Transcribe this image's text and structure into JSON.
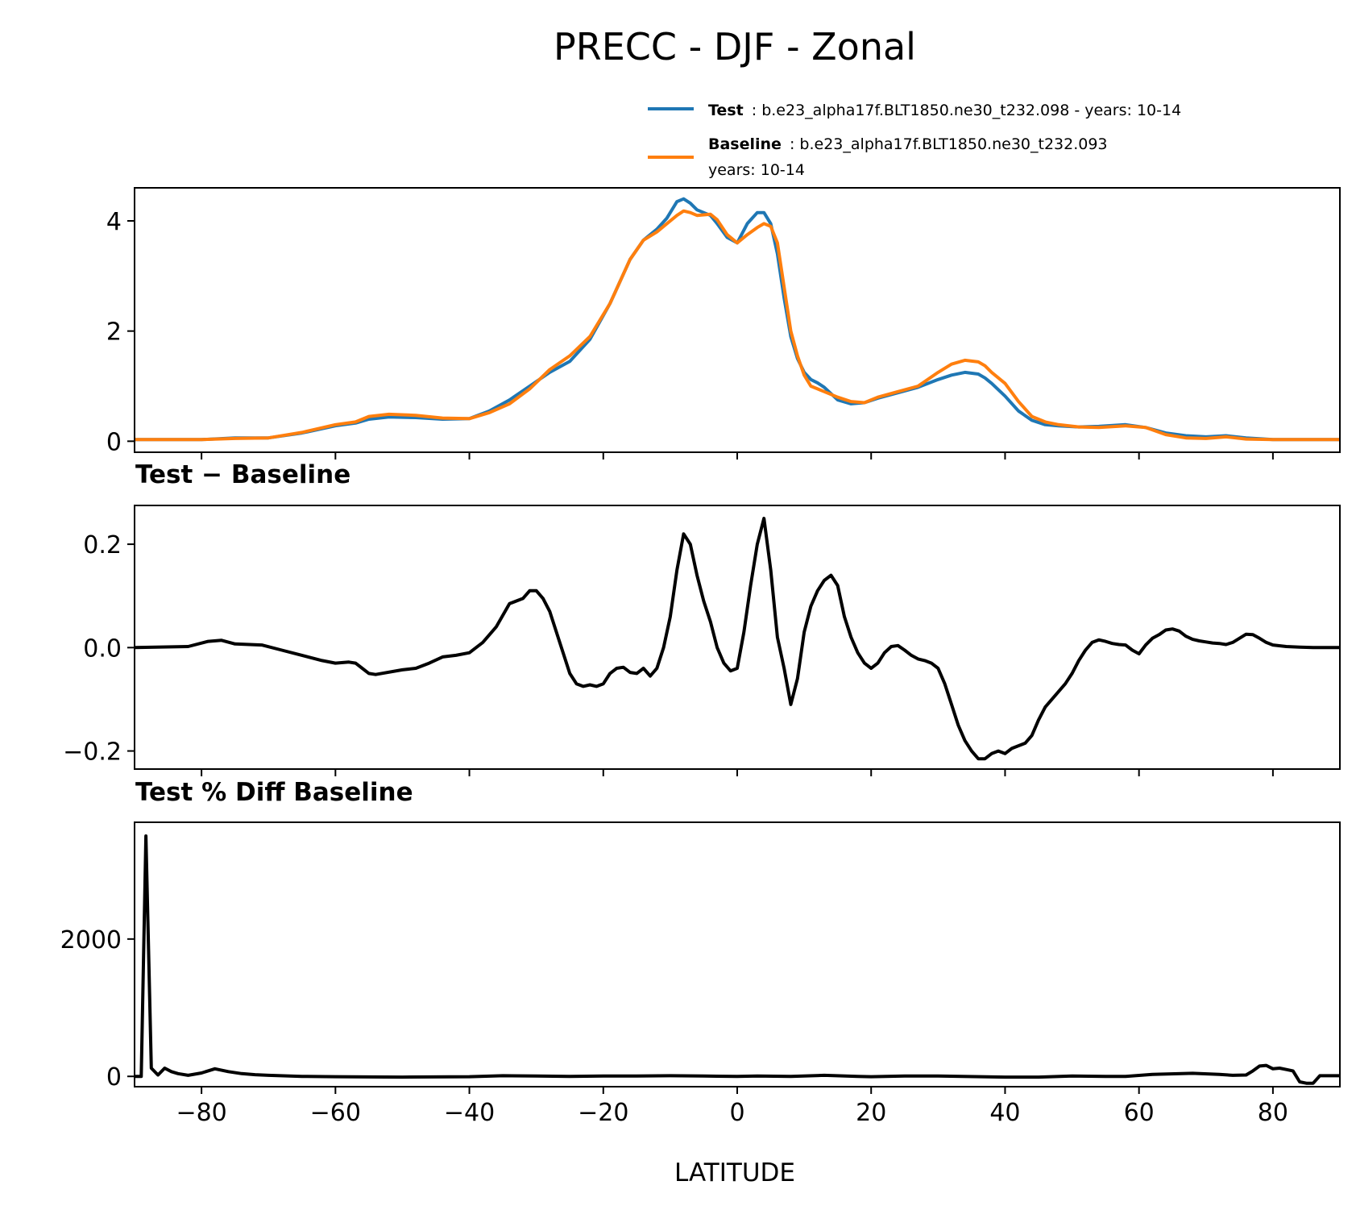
{
  "figure": {
    "title": "PRECC - DJF - Zonal",
    "xlabel": "LATITUDE"
  },
  "legend": {
    "test_name": "Test",
    "test_text": ": b.e23_alpha17f.BLT1850.ne30_t232.098 - years: 10-14",
    "baseline_name": "Baseline",
    "baseline_text": ": b.e23_alpha17f.BLT1850.ne30_t232.093",
    "baseline_years": "years: 10-14"
  },
  "colors": {
    "test": "#1f77b4",
    "baseline": "#ff7f0e",
    "diff": "#000000"
  },
  "chart_data": [
    {
      "type": "line",
      "title": "",
      "xlabel": "",
      "ylabel": "",
      "xlim": [
        -90,
        90
      ],
      "ylim": [
        -0.2,
        4.6
      ],
      "yticks": [
        0,
        2,
        4
      ],
      "ytick_labels": [
        "0",
        "2",
        "4"
      ],
      "xticks": [
        -80,
        -60,
        -40,
        -20,
        0,
        20,
        40,
        60,
        80
      ],
      "series": [
        {
          "name": "Test",
          "x": [
            -90,
            -80,
            -75,
            -70,
            -65,
            -60,
            -57,
            -55,
            -52,
            -48,
            -44,
            -40,
            -37,
            -34,
            -31,
            -28,
            -25,
            -22,
            -19,
            -16,
            -14,
            -12,
            -10.5,
            -9,
            -8,
            -7,
            -6,
            -4,
            -3,
            -1.5,
            0,
            1.5,
            3,
            4,
            5,
            6,
            7,
            8,
            9,
            10,
            11,
            12,
            13,
            15,
            17,
            19,
            21,
            24,
            27,
            30,
            32,
            34,
            36,
            37,
            38,
            40,
            42,
            44,
            46,
            48,
            51,
            54,
            58,
            61,
            64,
            67,
            70,
            73,
            76,
            80,
            85,
            90
          ],
          "values": [
            0.03,
            0.03,
            0.06,
            0.06,
            0.15,
            0.28,
            0.33,
            0.4,
            0.44,
            0.43,
            0.4,
            0.41,
            0.55,
            0.75,
            1.0,
            1.25,
            1.45,
            1.85,
            2.5,
            3.3,
            3.65,
            3.85,
            4.05,
            4.35,
            4.4,
            4.32,
            4.2,
            4.1,
            3.95,
            3.7,
            3.6,
            3.95,
            4.15,
            4.15,
            3.95,
            3.4,
            2.6,
            1.9,
            1.5,
            1.25,
            1.12,
            1.06,
            0.98,
            0.75,
            0.68,
            0.7,
            0.78,
            0.88,
            0.98,
            1.12,
            1.2,
            1.25,
            1.22,
            1.15,
            1.05,
            0.82,
            0.55,
            0.38,
            0.3,
            0.28,
            0.26,
            0.27,
            0.3,
            0.25,
            0.15,
            0.1,
            0.08,
            0.1,
            0.06,
            0.03,
            0.03,
            0.03
          ]
        },
        {
          "name": "Baseline",
          "x": [
            -90,
            -80,
            -75,
            -70,
            -65,
            -60,
            -57,
            -55,
            -52,
            -48,
            -44,
            -40,
            -37,
            -34,
            -31,
            -28,
            -25,
            -22,
            -19,
            -16,
            -14,
            -12,
            -10.5,
            -9,
            -8,
            -7,
            -6,
            -4,
            -3,
            -1.5,
            0,
            1.5,
            3,
            4,
            5,
            6,
            7,
            8,
            9,
            10,
            11,
            12,
            13,
            15,
            17,
            19,
            21,
            24,
            27,
            30,
            32,
            34,
            36,
            37,
            38,
            40,
            42,
            44,
            46,
            48,
            51,
            54,
            58,
            61,
            64,
            67,
            70,
            73,
            76,
            80,
            85,
            90
          ],
          "values": [
            0.03,
            0.03,
            0.05,
            0.06,
            0.16,
            0.3,
            0.35,
            0.45,
            0.49,
            0.47,
            0.42,
            0.41,
            0.52,
            0.68,
            0.95,
            1.3,
            1.55,
            1.9,
            2.5,
            3.3,
            3.65,
            3.8,
            3.95,
            4.1,
            4.18,
            4.15,
            4.1,
            4.12,
            4.02,
            3.75,
            3.6,
            3.75,
            3.88,
            3.95,
            3.9,
            3.6,
            2.8,
            2.0,
            1.55,
            1.2,
            1.0,
            0.95,
            0.9,
            0.8,
            0.72,
            0.7,
            0.8,
            0.9,
            1.0,
            1.25,
            1.4,
            1.47,
            1.44,
            1.37,
            1.25,
            1.05,
            0.72,
            0.45,
            0.35,
            0.3,
            0.26,
            0.25,
            0.28,
            0.25,
            0.12,
            0.06,
            0.05,
            0.08,
            0.04,
            0.03,
            0.03,
            0.03
          ]
        }
      ]
    },
    {
      "type": "line",
      "title": "Test − Baseline",
      "xlabel": "",
      "ylabel": "",
      "xlim": [
        -90,
        90
      ],
      "ylim": [
        -0.235,
        0.275
      ],
      "yticks": [
        -0.2,
        0.0,
        0.2
      ],
      "ytick_labels": [
        "−0.2",
        "0.0",
        "0.2"
      ],
      "xticks": [
        -80,
        -60,
        -40,
        -20,
        0,
        20,
        40,
        60,
        80
      ],
      "series": [
        {
          "name": "Test − Baseline",
          "x": [
            -90,
            -82,
            -79,
            -77,
            -75,
            -71,
            -68,
            -65,
            -62,
            -60,
            -58,
            -57,
            -56,
            -55,
            -54,
            -50,
            -48,
            -46,
            -44,
            -42,
            -40,
            -38,
            -36,
            -34,
            -32,
            -31,
            -30,
            -29,
            -28,
            -27,
            -26,
            -25,
            -24,
            -23,
            -22,
            -21,
            -20,
            -19,
            -18,
            -17,
            -16,
            -15,
            -14,
            -13,
            -12,
            -11,
            -10,
            -9,
            -8,
            -7,
            -6,
            -5,
            -4,
            -3,
            -2,
            -1,
            0,
            1,
            2,
            3,
            4,
            5,
            6,
            7,
            8,
            9,
            10,
            11,
            12,
            13,
            14,
            15,
            16,
            17,
            18,
            19,
            20,
            21,
            22,
            23,
            24,
            25,
            26,
            27,
            28,
            29,
            30,
            31,
            32,
            33,
            34,
            35,
            36,
            37,
            38,
            39,
            40,
            41,
            42,
            43,
            44,
            45,
            46,
            47,
            48,
            49,
            50,
            51,
            52,
            53,
            54,
            55,
            56,
            57,
            58,
            59,
            60,
            61,
            62,
            63,
            64,
            65,
            66,
            67,
            68,
            69,
            70,
            71,
            72,
            73,
            74,
            75,
            76,
            77,
            78,
            79,
            80,
            82,
            84,
            86,
            90
          ],
          "values": [
            0.0,
            0.002,
            0.012,
            0.014,
            0.007,
            0.005,
            -0.005,
            -0.015,
            -0.025,
            -0.03,
            -0.028,
            -0.03,
            -0.04,
            -0.05,
            -0.052,
            -0.043,
            -0.04,
            -0.03,
            -0.018,
            -0.015,
            -0.01,
            0.01,
            0.04,
            0.085,
            0.095,
            0.11,
            0.11,
            0.095,
            0.07,
            0.03,
            -0.01,
            -0.05,
            -0.07,
            -0.075,
            -0.072,
            -0.075,
            -0.07,
            -0.05,
            -0.04,
            -0.038,
            -0.048,
            -0.05,
            -0.04,
            -0.055,
            -0.04,
            0.0,
            0.06,
            0.15,
            0.22,
            0.2,
            0.14,
            0.09,
            0.05,
            0.0,
            -0.03,
            -0.045,
            -0.04,
            0.03,
            0.12,
            0.2,
            0.25,
            0.15,
            0.02,
            -0.04,
            -0.11,
            -0.06,
            0.03,
            0.08,
            0.11,
            0.13,
            0.14,
            0.12,
            0.06,
            0.02,
            -0.01,
            -0.03,
            -0.04,
            -0.03,
            -0.01,
            0.002,
            0.004,
            -0.005,
            -0.015,
            -0.022,
            -0.025,
            -0.03,
            -0.04,
            -0.07,
            -0.11,
            -0.15,
            -0.18,
            -0.2,
            -0.215,
            -0.215,
            -0.205,
            -0.2,
            -0.205,
            -0.195,
            -0.19,
            -0.185,
            -0.17,
            -0.14,
            -0.115,
            -0.1,
            -0.085,
            -0.07,
            -0.05,
            -0.025,
            -0.005,
            0.01,
            0.015,
            0.012,
            0.008,
            0.006,
            0.005,
            -0.005,
            -0.012,
            0.005,
            0.018,
            0.025,
            0.034,
            0.036,
            0.032,
            0.022,
            0.016,
            0.013,
            0.011,
            0.009,
            0.008,
            0.006,
            0.01,
            0.018,
            0.026,
            0.025,
            0.018,
            0.01,
            0.005,
            0.002,
            0.001,
            0.0,
            0.0
          ]
        }
      ]
    },
    {
      "type": "line",
      "title": "Test % Diff Baseline",
      "xlabel": "LATITUDE",
      "ylabel": "",
      "xlim": [
        -90,
        90
      ],
      "ylim": [
        -150,
        3700
      ],
      "yticks": [
        0,
        2000
      ],
      "ytick_labels": [
        "0",
        "2000"
      ],
      "xticks": [
        -80,
        -60,
        -40,
        -20,
        0,
        20,
        40,
        60,
        80
      ],
      "xtick_labels": [
        "−80",
        "−60",
        "−40",
        "−20",
        "0",
        "20",
        "40",
        "60",
        "80"
      ],
      "series": [
        {
          "name": "Test % Diff Baseline",
          "x": [
            -90,
            -89,
            -88.3,
            -87.5,
            -86.5,
            -85.5,
            -84.5,
            -83.5,
            -82,
            -80,
            -78,
            -76,
            -74,
            -72,
            -70,
            -65,
            -60,
            -50,
            -40,
            -35,
            -30,
            -25,
            -20,
            -15,
            -10,
            -5,
            0,
            3,
            8,
            13,
            18,
            20,
            25,
            30,
            40,
            45,
            50,
            55,
            58,
            62,
            68,
            72,
            74,
            76,
            77,
            78,
            79,
            80,
            81,
            82,
            83,
            84,
            85,
            86,
            87,
            90
          ],
          "values": [
            0,
            0,
            3500,
            120,
            20,
            120,
            70,
            40,
            15,
            50,
            110,
            70,
            40,
            25,
            15,
            0,
            -5,
            -10,
            -5,
            10,
            5,
            0,
            5,
            5,
            10,
            5,
            0,
            5,
            0,
            15,
            0,
            -5,
            5,
            5,
            -10,
            -10,
            5,
            0,
            0,
            30,
            45,
            30,
            15,
            20,
            80,
            150,
            160,
            110,
            120,
            100,
            80,
            -80,
            -100,
            -100,
            10,
            10
          ]
        }
      ]
    }
  ]
}
